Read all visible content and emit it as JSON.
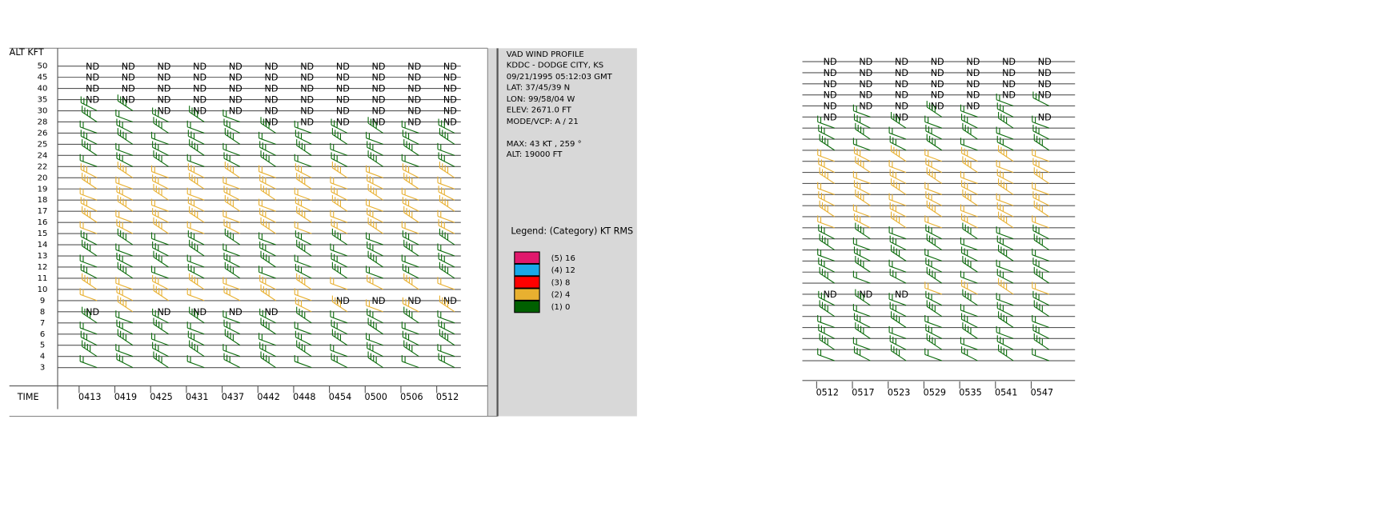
{
  "left_panel": {
    "axis_label": "ALT KFT",
    "time_label": "TIME",
    "times": [
      "0413",
      "0419",
      "0425",
      "0431",
      "0437",
      "0442",
      "0448",
      "0454",
      "0500",
      "0506",
      "0512"
    ],
    "rows": [
      {
        "altitude": 50,
        "cells": [
          "ND",
          "ND",
          "ND",
          "ND",
          "ND",
          "ND",
          "ND",
          "ND",
          "ND",
          "ND",
          "ND"
        ]
      },
      {
        "altitude": 45,
        "cells": [
          "ND",
          "ND",
          "ND",
          "ND",
          "ND",
          "ND",
          "ND",
          "ND",
          "ND",
          "ND",
          "ND"
        ]
      },
      {
        "altitude": 40,
        "cells": [
          "ND",
          "ND",
          "ND",
          "ND",
          "ND",
          "ND",
          "ND",
          "ND",
          "ND",
          "ND",
          "ND"
        ]
      },
      {
        "altitude": 35,
        "cells": [
          "ND",
          "ND",
          "ND",
          "ND",
          "ND",
          "ND",
          "ND",
          "ND",
          "ND",
          "ND",
          "ND"
        ]
      },
      {
        "altitude": 30,
        "color": "#0b6b0b",
        "cells": [
          null,
          null,
          "ND",
          "ND",
          "ND",
          "ND",
          "ND",
          "ND",
          "ND",
          "ND",
          "ND"
        ]
      },
      {
        "altitude": 28,
        "color": "#0b6b0b",
        "cells": [
          null,
          null,
          null,
          null,
          null,
          "ND",
          "ND",
          "ND",
          "ND",
          "ND",
          "ND"
        ]
      },
      {
        "altitude": 26,
        "color": "#0b6b0b",
        "cells": [
          null,
          null,
          null,
          null,
          null,
          null,
          null,
          null,
          null,
          null,
          null
        ]
      },
      {
        "altitude": 25,
        "color": "#0b6b0b",
        "cells": [
          null,
          null,
          null,
          null,
          null,
          null,
          null,
          null,
          null,
          null,
          null
        ]
      },
      {
        "altitude": 24,
        "color": "#0b6b0b",
        "cells": [
          null,
          null,
          null,
          null,
          null,
          null,
          null,
          null,
          null,
          null,
          null
        ]
      },
      {
        "altitude": 22,
        "color": "#0b6b0b",
        "cells": [
          null,
          null,
          null,
          null,
          null,
          null,
          null,
          null,
          null,
          null,
          null
        ]
      },
      {
        "altitude": 20,
        "color": "#e8b030",
        "cells": [
          null,
          null,
          null,
          null,
          null,
          null,
          null,
          null,
          null,
          null,
          null
        ]
      },
      {
        "altitude": 19,
        "color": "#e8b030",
        "cells": [
          null,
          null,
          null,
          null,
          null,
          null,
          null,
          null,
          null,
          null,
          null
        ]
      },
      {
        "altitude": 18,
        "color": "#e8b030",
        "cells": [
          null,
          null,
          null,
          null,
          null,
          null,
          null,
          null,
          null,
          null,
          null
        ]
      },
      {
        "altitude": 17,
        "color": "#e8b030",
        "cells": [
          null,
          null,
          null,
          null,
          null,
          null,
          null,
          null,
          null,
          null,
          null
        ]
      },
      {
        "altitude": 16,
        "color": "#e8b030",
        "cells": [
          null,
          null,
          null,
          null,
          null,
          null,
          null,
          null,
          null,
          null,
          null
        ]
      },
      {
        "altitude": 15,
        "color": "#e8b030",
        "cells": [
          null,
          null,
          null,
          null,
          null,
          null,
          null,
          null,
          null,
          null,
          null
        ]
      },
      {
        "altitude": 14,
        "color": "#0b6b0b",
        "cells": [
          null,
          null,
          null,
          null,
          null,
          null,
          null,
          null,
          null,
          null,
          null
        ]
      },
      {
        "altitude": 13,
        "color": "#0b6b0b",
        "cells": [
          null,
          null,
          null,
          null,
          null,
          null,
          null,
          null,
          null,
          null,
          null
        ]
      },
      {
        "altitude": 12,
        "color": "#0b6b0b",
        "cells": [
          null,
          null,
          null,
          null,
          null,
          null,
          null,
          null,
          null,
          null,
          null
        ]
      },
      {
        "altitude": 11,
        "color": "#0b6b0b",
        "cells": [
          null,
          null,
          null,
          null,
          null,
          null,
          null,
          null,
          null,
          null,
          null
        ]
      },
      {
        "altitude": 10,
        "color": "#e8b030",
        "cells": [
          null,
          null,
          null,
          null,
          null,
          null,
          null,
          null,
          null,
          null,
          null
        ]
      },
      {
        "altitude": 9,
        "color": "#e8b030",
        "cells": [
          null,
          null,
          null,
          null,
          null,
          null,
          null,
          "ND",
          "ND",
          "ND",
          "ND"
        ]
      },
      {
        "altitude": 8,
        "color": "#e8b030",
        "cells": [
          "ND",
          null,
          "ND",
          "ND",
          "ND",
          "ND",
          null,
          null,
          null,
          null,
          null
        ]
      },
      {
        "altitude": 7,
        "color": "#0b6b0b",
        "cells": [
          null,
          null,
          null,
          null,
          null,
          null,
          null,
          null,
          null,
          null,
          null
        ]
      },
      {
        "altitude": 6,
        "color": "#0b6b0b",
        "cells": [
          null,
          null,
          null,
          null,
          null,
          null,
          null,
          null,
          null,
          null,
          null
        ]
      },
      {
        "altitude": 5,
        "color": "#0b6b0b",
        "cells": [
          null,
          null,
          null,
          null,
          null,
          null,
          null,
          null,
          null,
          null,
          null
        ]
      },
      {
        "altitude": 4,
        "color": "#0b6b0b",
        "cells": [
          null,
          null,
          null,
          null,
          null,
          null,
          null,
          null,
          null,
          null,
          null
        ]
      },
      {
        "altitude": 3,
        "color": "#0b6b0b",
        "cells": [
          null,
          null,
          null,
          null,
          null,
          null,
          null,
          null,
          null,
          null,
          null
        ]
      }
    ]
  },
  "right_panel": {
    "times": [
      "0512",
      "0517",
      "0523",
      "0529",
      "0535",
      "0541",
      "0547"
    ],
    "rows": [
      {
        "cells": [
          "ND",
          "ND",
          "ND",
          "ND",
          "ND",
          "ND",
          "ND"
        ]
      },
      {
        "cells": [
          "ND",
          "ND",
          "ND",
          "ND",
          "ND",
          "ND",
          "ND"
        ]
      },
      {
        "cells": [
          "ND",
          "ND",
          "ND",
          "ND",
          "ND",
          "ND",
          "ND"
        ]
      },
      {
        "cells": [
          "ND",
          "ND",
          "ND",
          "ND",
          "ND",
          "ND",
          "ND"
        ]
      },
      {
        "color": "#0b6b0b",
        "cells": [
          "ND",
          "ND",
          "ND",
          "ND",
          "ND",
          null,
          null
        ]
      },
      {
        "color": "#0b6b0b",
        "cells": [
          "ND",
          null,
          "ND",
          null,
          null,
          null,
          "ND"
        ]
      },
      {
        "color": "#0b6b0b",
        "cells": [
          null,
          null,
          null,
          null,
          null,
          null,
          null
        ]
      },
      {
        "color": "#0b6b0b",
        "cells": [
          null,
          null,
          null,
          null,
          null,
          null,
          null
        ]
      },
      {
        "color": "#0b6b0b",
        "cells": [
          null,
          null,
          null,
          null,
          null,
          null,
          null
        ]
      },
      {
        "color": "#e8b030",
        "cells": [
          null,
          null,
          null,
          null,
          null,
          null,
          null
        ]
      },
      {
        "color": "#e8b030",
        "cells": [
          null,
          null,
          null,
          null,
          null,
          null,
          null
        ]
      },
      {
        "color": "#e8b030",
        "cells": [
          null,
          null,
          null,
          null,
          null,
          null,
          null
        ]
      },
      {
        "color": "#e8b030",
        "cells": [
          null,
          null,
          null,
          null,
          null,
          null,
          null
        ]
      },
      {
        "color": "#e8b030",
        "cells": [
          null,
          null,
          null,
          null,
          null,
          null,
          null
        ]
      },
      {
        "color": "#e8b030",
        "cells": [
          null,
          null,
          null,
          null,
          null,
          null,
          null
        ]
      },
      {
        "color": "#e8b030",
        "cells": [
          null,
          null,
          null,
          null,
          null,
          null,
          null
        ]
      },
      {
        "color": "#0b6b0b",
        "cells": [
          null,
          null,
          null,
          null,
          null,
          null,
          null
        ]
      },
      {
        "color": "#0b6b0b",
        "cells": [
          null,
          null,
          null,
          null,
          null,
          null,
          null
        ]
      },
      {
        "color": "#0b6b0b",
        "cells": [
          null,
          null,
          null,
          null,
          null,
          null,
          null
        ]
      },
      {
        "color": "#0b6b0b",
        "cells": [
          null,
          null,
          null,
          null,
          null,
          null,
          null
        ]
      },
      {
        "color": "#0b6b0b",
        "cells": [
          null,
          null,
          null,
          null,
          null,
          null,
          null
        ]
      },
      {
        "color": "#e8b030",
        "cells": [
          "ND",
          "ND",
          "ND",
          null,
          null,
          null,
          null
        ]
      },
      {
        "color": "#0b6b0b",
        "cells": [
          null,
          null,
          null,
          null,
          null,
          null,
          null
        ]
      },
      {
        "color": "#0b6b0b",
        "cells": [
          null,
          null,
          null,
          null,
          null,
          null,
          null
        ]
      },
      {
        "color": "#0b6b0b",
        "cells": [
          null,
          null,
          null,
          null,
          null,
          null,
          null
        ]
      },
      {
        "color": "#0b6b0b",
        "cells": [
          null,
          null,
          null,
          null,
          null,
          null,
          null
        ]
      },
      {
        "color": "#0b6b0b",
        "cells": [
          null,
          null,
          null,
          null,
          null,
          null,
          null
        ]
      },
      {
        "color": "#0b6b0b",
        "cells": [
          null,
          null,
          null,
          null,
          null,
          null,
          null
        ]
      }
    ]
  },
  "info": [
    "VAD WIND PROFILE",
    "KDDC - DODGE CITY, KS",
    "09/21/1995 05:12:03 GMT",
    "LAT: 37/45/39 N",
    "LON: 99/58/04 W",
    "ELEV: 2671.0 FT",
    "MODE/VCP: A / 21",
    "MAX: 43 KT , 259 °",
    "ALT: 19000 FT"
  ],
  "legend": {
    "title": "Legend: (Category) KT RMS",
    "items": [
      {
        "label": "(5) 16",
        "color": "#e0186c"
      },
      {
        "label": "(4) 12",
        "color": "#18a8e8"
      },
      {
        "label": "(3) 8",
        "color": "#ff0000"
      },
      {
        "label": "(2) 4",
        "color": "#e8b030"
      },
      {
        "label": "(1) 0",
        "color": "#006000"
      }
    ]
  }
}
